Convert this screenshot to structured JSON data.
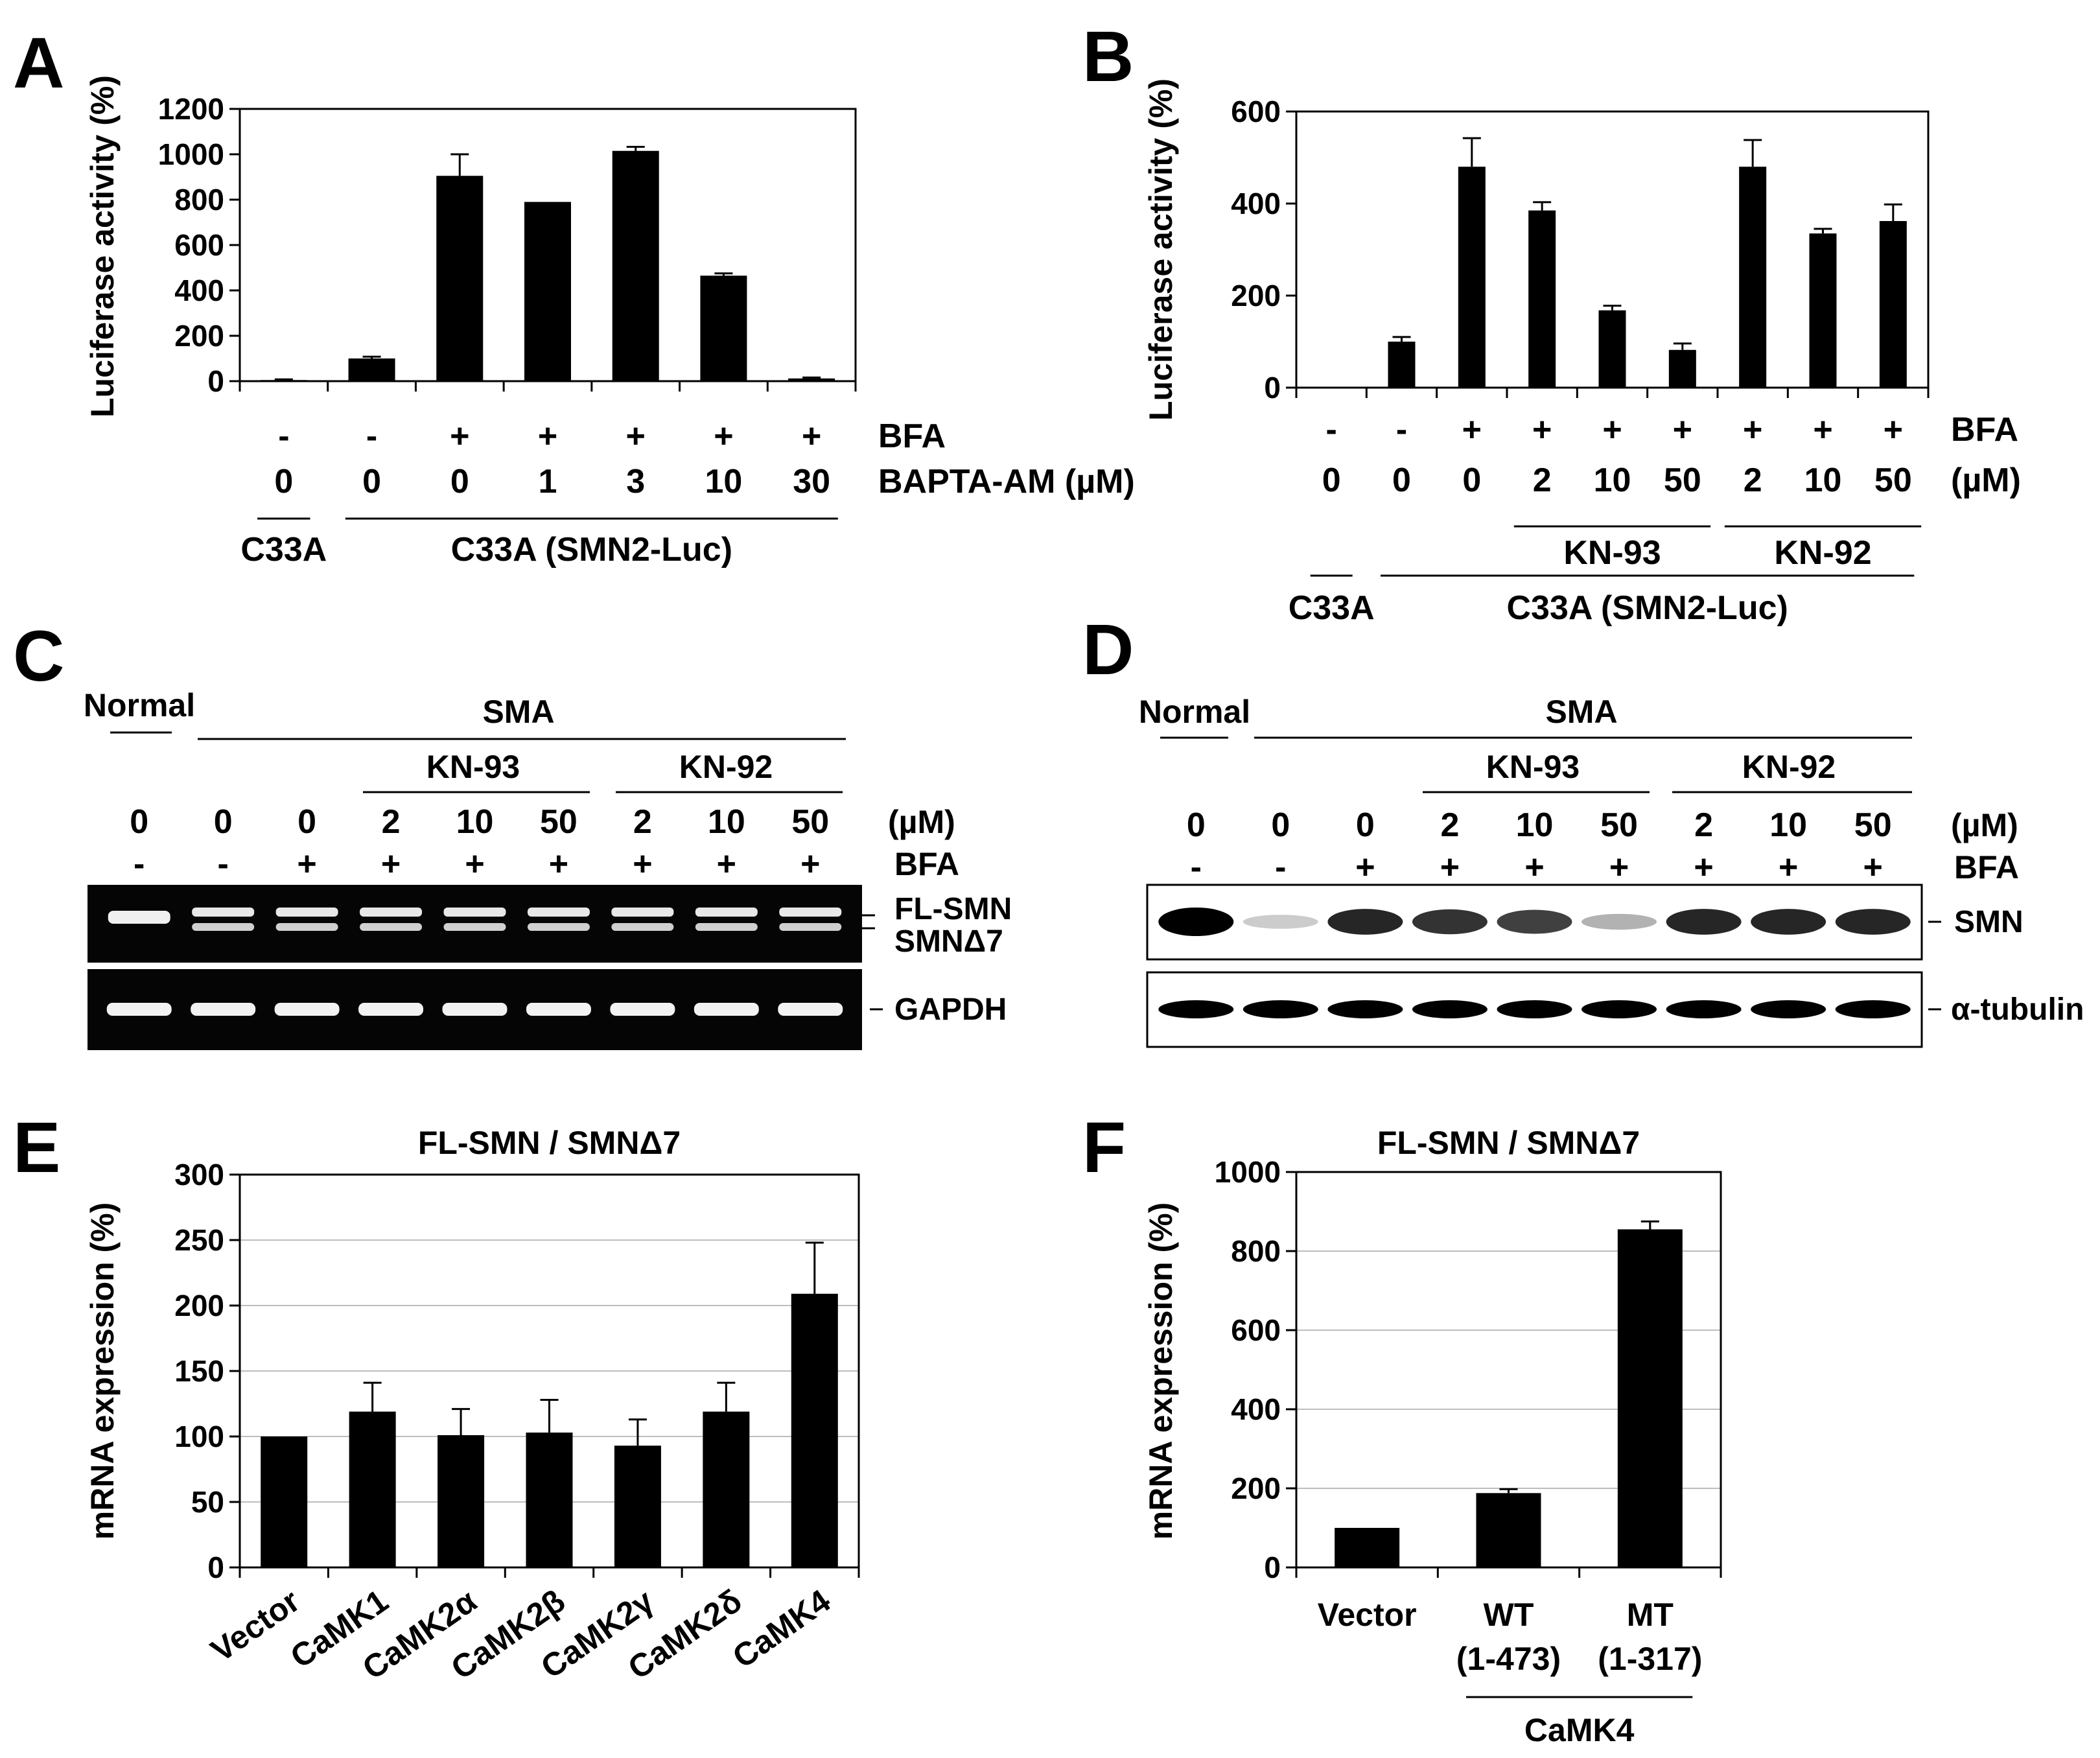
{
  "panel_labels": [
    "A",
    "B",
    "C",
    "D",
    "E",
    "F"
  ],
  "chart_data": [
    {
      "panel": "A",
      "type": "bar",
      "ylabel": "Luciferase activity (%)",
      "ylim": [
        0,
        1200
      ],
      "yticks": [
        0,
        200,
        400,
        600,
        800,
        1000,
        1200
      ],
      "grid": false,
      "values": [
        5,
        100,
        905,
        790,
        1015,
        465,
        12
      ],
      "errors": [
        3,
        8,
        95,
        0,
        18,
        10,
        4
      ],
      "rows": [
        {
          "label": "BFA",
          "values": [
            "-",
            "-",
            "+",
            "+",
            "+",
            "+",
            "+"
          ]
        },
        {
          "label": "BAPTA-AM  (µM)",
          "values": [
            "0",
            "0",
            "0",
            "1",
            "3",
            "10",
            "30"
          ]
        }
      ],
      "groups": [
        {
          "label": "C33A",
          "from": 0,
          "to": 0
        },
        {
          "label": "C33A  (SMN2-Luc)",
          "from": 1,
          "to": 6
        }
      ]
    },
    {
      "panel": "B",
      "type": "bar",
      "ylabel": "Luciferase activity (%)",
      "ylim": [
        0,
        600
      ],
      "yticks": [
        0,
        200,
        400,
        600
      ],
      "grid": false,
      "values": [
        0,
        100,
        480,
        385,
        168,
        82,
        480,
        335,
        362
      ],
      "errors": [
        0,
        10,
        62,
        18,
        10,
        14,
        58,
        10,
        36
      ],
      "rows": [
        {
          "label": "BFA",
          "values": [
            "-",
            "-",
            "+",
            "+",
            "+",
            "+",
            "+",
            "+",
            "+"
          ]
        },
        {
          "label": "(µM)",
          "values": [
            "0",
            "0",
            "0",
            "2",
            "10",
            "50",
            "2",
            "10",
            "50"
          ]
        }
      ],
      "subgroups": [
        {
          "label": "KN-93",
          "from": 3,
          "to": 5
        },
        {
          "label": "KN-92",
          "from": 6,
          "to": 8
        }
      ],
      "groups": [
        {
          "label": "C33A",
          "from": 0,
          "to": 0
        },
        {
          "label": "C33A  (SMN2-Luc)",
          "from": 1,
          "to": 8
        }
      ]
    },
    {
      "panel": "E",
      "type": "bar",
      "title": "FL-SMN / SMNΔ7",
      "ylabel": "mRNA expression (%)",
      "ylim": [
        0,
        300
      ],
      "yticks": [
        0,
        50,
        100,
        150,
        200,
        250,
        300
      ],
      "grid": true,
      "categories": [
        "Vector",
        "CaMK1",
        "CaMK2α",
        "CaMK2β",
        "CaMK2γ",
        "CaMK2δ",
        "CaMK4"
      ],
      "values": [
        100,
        119,
        101,
        103,
        93,
        119,
        209
      ],
      "errors": [
        0,
        22,
        20,
        25,
        20,
        22,
        39
      ]
    },
    {
      "panel": "F",
      "type": "bar",
      "title": "FL-SMN / SMNΔ7",
      "ylabel": "mRNA expression (%)",
      "ylim": [
        0,
        1000
      ],
      "yticks": [
        0,
        200,
        400,
        600,
        800,
        1000
      ],
      "grid": true,
      "categories": [
        "Vector",
        "WT",
        "MT"
      ],
      "sublabels": [
        "",
        "(1-473)",
        "(1-317)"
      ],
      "values": [
        100,
        188,
        855
      ],
      "errors": [
        0,
        10,
        20
      ],
      "group": {
        "label": "CaMK4",
        "from": 1,
        "to": 2
      }
    }
  ],
  "gel_C": {
    "top_groups": [
      "Normal",
      "SMA"
    ],
    "sub_groups": [
      "KN-93",
      "KN-92"
    ],
    "conc": [
      "0",
      "0",
      "0",
      "2",
      "10",
      "50",
      "2",
      "10",
      "50"
    ],
    "conc_unit": "(µM)",
    "bfa": [
      "-",
      "-",
      "+",
      "+",
      "+",
      "+",
      "+",
      "+",
      "+"
    ],
    "bfa_label": "BFA",
    "band_labels": [
      "FL-SMN",
      "SMNΔ7",
      "GAPDH"
    ]
  },
  "blot_D": {
    "top_groups": [
      "Normal",
      "SMA"
    ],
    "sub_groups": [
      "KN-93",
      "KN-92"
    ],
    "conc": [
      "0",
      "0",
      "0",
      "2",
      "10",
      "50",
      "2",
      "10",
      "50"
    ],
    "conc_unit": "(µM)",
    "bfa": [
      "-",
      "-",
      "+",
      "+",
      "+",
      "+",
      "+",
      "+",
      "+"
    ],
    "bfa_label": "BFA",
    "band_labels": [
      "SMN",
      "α-tubulin"
    ],
    "smn_intensity": [
      1.0,
      0.2,
      0.85,
      0.8,
      0.75,
      0.3,
      0.85,
      0.85,
      0.85
    ],
    "tubulin_intensity": [
      1,
      1,
      1,
      1,
      1,
      1,
      1,
      1,
      1
    ]
  }
}
